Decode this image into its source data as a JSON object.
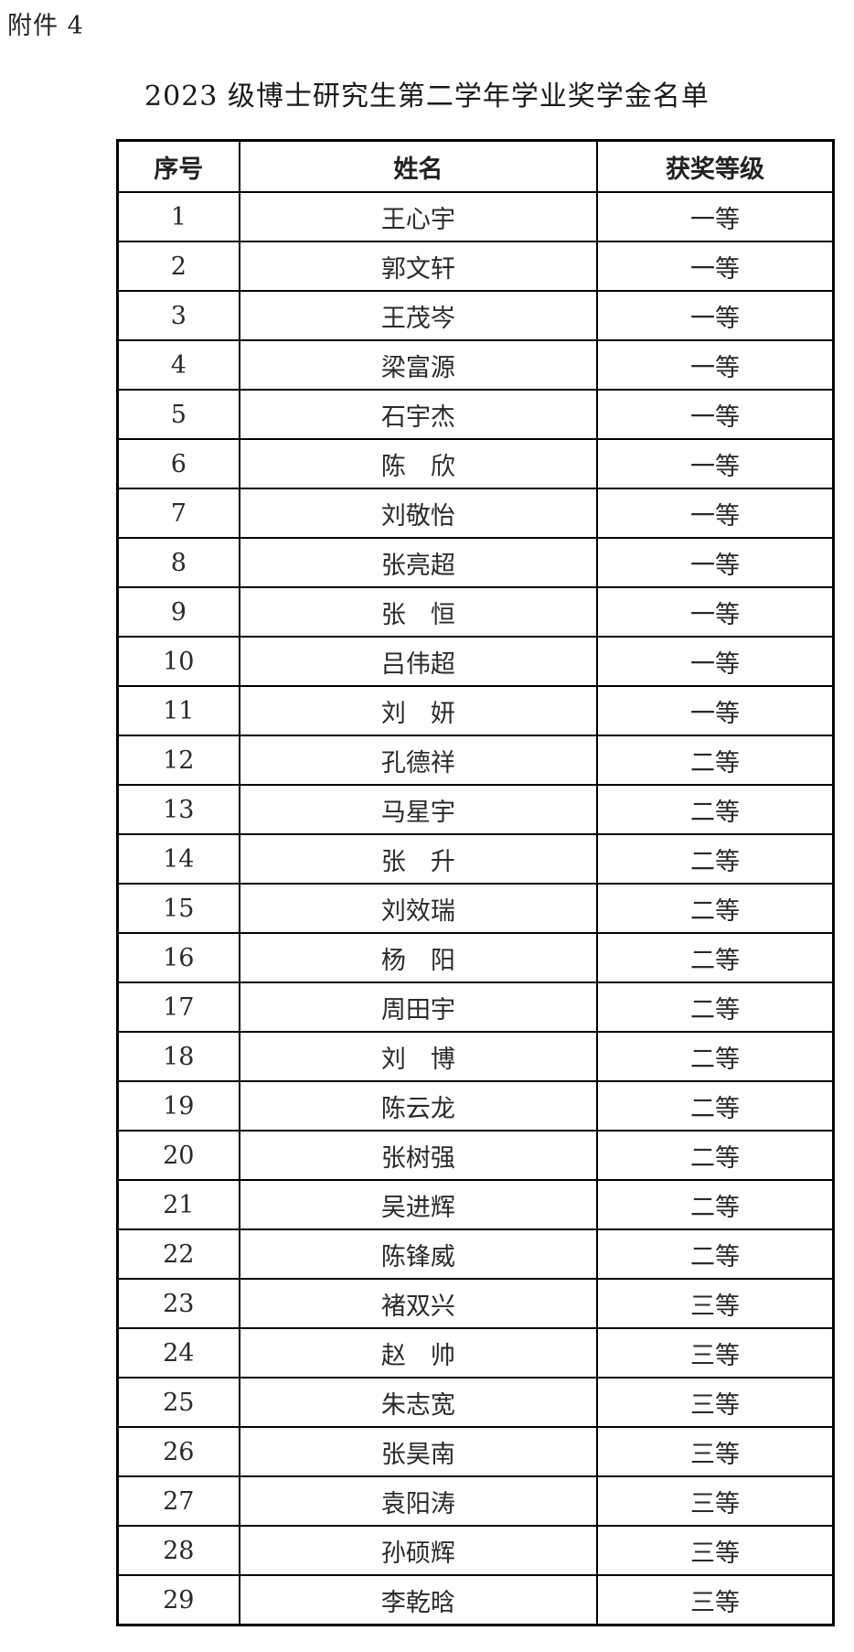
{
  "page": {
    "attachment_label": "附件 4",
    "title": "2023 级博士研究生第二学年学业奖学金名单"
  },
  "table": {
    "columns": [
      "序号",
      "姓名",
      "获奖等级"
    ],
    "rows": [
      {
        "no": "1",
        "name": "王心宇",
        "award": "一等"
      },
      {
        "no": "2",
        "name": "郭文轩",
        "award": "一等"
      },
      {
        "no": "3",
        "name": "王茂岑",
        "award": "一等"
      },
      {
        "no": "4",
        "name": "梁富源",
        "award": "一等"
      },
      {
        "no": "5",
        "name": "石宇杰",
        "award": "一等"
      },
      {
        "no": "6",
        "name": "陈　欣",
        "award": "一等"
      },
      {
        "no": "7",
        "name": "刘敬怡",
        "award": "一等"
      },
      {
        "no": "8",
        "name": "张亮超",
        "award": "一等"
      },
      {
        "no": "9",
        "name": "张　恒",
        "award": "一等"
      },
      {
        "no": "10",
        "name": "吕伟超",
        "award": "一等"
      },
      {
        "no": "11",
        "name": "刘　妍",
        "award": "一等"
      },
      {
        "no": "12",
        "name": "孔德祥",
        "award": "二等"
      },
      {
        "no": "13",
        "name": "马星宇",
        "award": "二等"
      },
      {
        "no": "14",
        "name": "张　升",
        "award": "二等"
      },
      {
        "no": "15",
        "name": "刘效瑞",
        "award": "二等"
      },
      {
        "no": "16",
        "name": "杨　阳",
        "award": "二等"
      },
      {
        "no": "17",
        "name": "周田宇",
        "award": "二等"
      },
      {
        "no": "18",
        "name": "刘　博",
        "award": "二等"
      },
      {
        "no": "19",
        "name": "陈云龙",
        "award": "二等"
      },
      {
        "no": "20",
        "name": "张树强",
        "award": "二等"
      },
      {
        "no": "21",
        "name": "吴进辉",
        "award": "二等"
      },
      {
        "no": "22",
        "name": "陈锋威",
        "award": "二等"
      },
      {
        "no": "23",
        "name": "褚双兴",
        "award": "三等"
      },
      {
        "no": "24",
        "name": "赵　帅",
        "award": "三等"
      },
      {
        "no": "25",
        "name": "朱志宽",
        "award": "三等"
      },
      {
        "no": "26",
        "name": "张昊南",
        "award": "三等"
      },
      {
        "no": "27",
        "name": "袁阳涛",
        "award": "三等"
      },
      {
        "no": "28",
        "name": "孙硕辉",
        "award": "三等"
      },
      {
        "no": "29",
        "name": "李乾晗",
        "award": "三等"
      }
    ]
  }
}
